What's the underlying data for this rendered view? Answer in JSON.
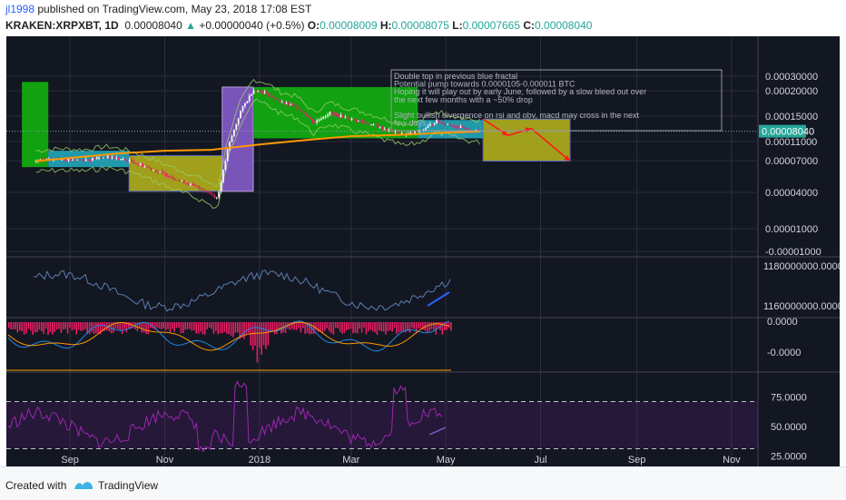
{
  "header": {
    "author": "jl1998",
    "published_text": "published on TradingView.com, May 23, 2018 17:08 EST",
    "symbol": "KRAKEN:XRPXBT, 1D",
    "last": "0.00008040",
    "arrow": "▲",
    "change": "+0.00000040 (+0.5%)",
    "o_label": "O:",
    "o": "0.00008009",
    "h_label": "H:",
    "h": "0.00008075",
    "l_label": "L:",
    "l": "0.00007665",
    "c_label": "C:",
    "c": "0.00008040"
  },
  "footer": {
    "created_with": "Created with",
    "brand": "TradingView"
  },
  "annotation": [
    "Double top in previous blue fractal",
    "Potential pump towards 0.0000105-0.000011 BTC",
    "Hoping it will play out by early June, followed by a slow bleed out over",
    "the next few months with a ~50% drop",
    "",
    "Slight bullish divergence on rsi and obv, macd may cross in the next",
    "few days"
  ],
  "colors": {
    "background": "#131722",
    "grid": "#2a2e39",
    "candle_up": "#f7f7f7",
    "candle_down": "#e91e63",
    "ma": "#ff9800",
    "bb": "#9ccc65",
    "green_box": "#11a911",
    "olive_box": "#a8a81c",
    "purple_box": "#7e57c2",
    "teal_box": "#26c6da",
    "arrow": "#ff1a1a",
    "obv": "#5b7db0",
    "macd": "#1e88e5",
    "signal": "#ff9800",
    "hist": "#e91e63",
    "rsi": "#9c27b0",
    "price_tag": "#26a69a",
    "axis_text": "#d1d4dc"
  },
  "chart_data": [
    {
      "type": "line",
      "panel": "price",
      "scale": "log",
      "x_ticks": [
        "Sep",
        "Nov",
        "2018",
        "Mar",
        "May",
        "Jul",
        "Sep",
        "Nov"
      ],
      "y_ticks": [
        "0.00030000",
        "0.00020000",
        "0.00015000",
        "0.00011000",
        "0.00007000",
        "0.00004000",
        "0.00001000",
        "-0.00001000"
      ],
      "current_price_tag": "0.00008040",
      "current_price": 8.04e-05,
      "series": [
        {
          "values_by_date": [
            [
              "2017-08-10",
              4.5e-05
            ],
            [
              "2017-08-25",
              4.7e-05
            ],
            [
              "2017-09-10",
              4.6e-05
            ],
            [
              "2017-09-25",
              4.9e-05
            ],
            [
              "2017-10-10",
              4.5e-05
            ],
            [
              "2017-10-25",
              3.8e-05
            ],
            [
              "2017-11-10",
              3.1e-05
            ],
            [
              "2017-11-25",
              2.6e-05
            ],
            [
              "2017-12-05",
              2.2e-05
            ],
            [
              "2017-12-12",
              6e-05
            ],
            [
              "2017-12-20",
              0.00012
            ],
            [
              "2017-12-28",
              0.00018
            ],
            [
              "2018-01-05",
              0.00017
            ],
            [
              "2018-01-15",
              0.00014
            ],
            [
              "2018-01-25",
              0.00013
            ],
            [
              "2018-02-05",
              9.5e-05
            ],
            [
              "2018-02-15",
              0.000115
            ],
            [
              "2018-02-25",
              0.000105
            ],
            [
              "2018-03-10",
              9.5e-05
            ],
            [
              "2018-03-25",
              8.2e-05
            ],
            [
              "2018-04-05",
              7.5e-05
            ],
            [
              "2018-04-15",
              8.1e-05
            ],
            [
              "2018-04-25",
              9.8e-05
            ],
            [
              "2018-05-05",
              9e-05
            ],
            [
              "2018-05-15",
              8.3e-05
            ],
            [
              "2018-05-23",
              8.04e-05
            ]
          ]
        },
        {
          "name": "MA",
          "values_by_date": [
            [
              "2017-08-10",
              4.5e-05
            ],
            [
              "2017-10-01",
              5.2e-05
            ],
            [
              "2017-11-01",
              5.5e-05
            ],
            [
              "2017-12-01",
              5.6e-05
            ],
            [
              "2018-01-01",
              6.2e-05
            ],
            [
              "2018-02-01",
              6.8e-05
            ],
            [
              "2018-03-01",
              7.3e-05
            ],
            [
              "2018-04-01",
              7.5e-05
            ],
            [
              "2018-05-01",
              7.8e-05
            ],
            [
              "2018-05-23",
              8e-05
            ]
          ]
        }
      ],
      "boxes": [
        {
          "color": "green",
          "from": "2017-08-01",
          "to": "2017-08-18",
          "low": 4e-05,
          "high": 0.00021
        },
        {
          "color": "teal",
          "from": "2017-08-18",
          "to": "2017-10-09",
          "low": 4e-05,
          "high": 5.5e-05
        },
        {
          "color": "olive",
          "from": "2017-10-09",
          "to": "2017-12-08",
          "low": 2.5e-05,
          "high": 5e-05
        },
        {
          "color": "purple",
          "from": "2017-12-08",
          "to": "2017-12-28",
          "low": 2.5e-05,
          "high": 0.00019
        },
        {
          "color": "green",
          "from": "2017-12-28",
          "to": "2018-04-13",
          "low": 7e-05,
          "high": 0.00019
        },
        {
          "color": "teal",
          "from": "2018-04-13",
          "to": "2018-05-25",
          "low": 7e-05,
          "high": 0.0001
        },
        {
          "color": "olive",
          "from": "2018-05-25",
          "to": "2018-07-20",
          "low": 4.5e-05,
          "high": 0.000102
        }
      ],
      "projection": [
        [
          "2018-05-25",
          0.000102
        ],
        [
          "2018-06-10",
          7.4e-05
        ],
        [
          "2018-06-25",
          8.5e-05
        ],
        [
          "2018-07-20",
          4.5e-05
        ]
      ]
    },
    {
      "type": "line",
      "panel": "obv",
      "y_ticks": [
        "1180000000.0000",
        "1160000000.0000"
      ]
    },
    {
      "type": "bar",
      "panel": "macd",
      "y_ticks": [
        "0.0000",
        "-0.0000"
      ]
    },
    {
      "type": "line",
      "panel": "rsi",
      "y_ticks": [
        "75.0000",
        "50.0000",
        "25.0000"
      ],
      "levels": [
        70,
        30
      ],
      "ylim": [
        15,
        95
      ]
    }
  ]
}
